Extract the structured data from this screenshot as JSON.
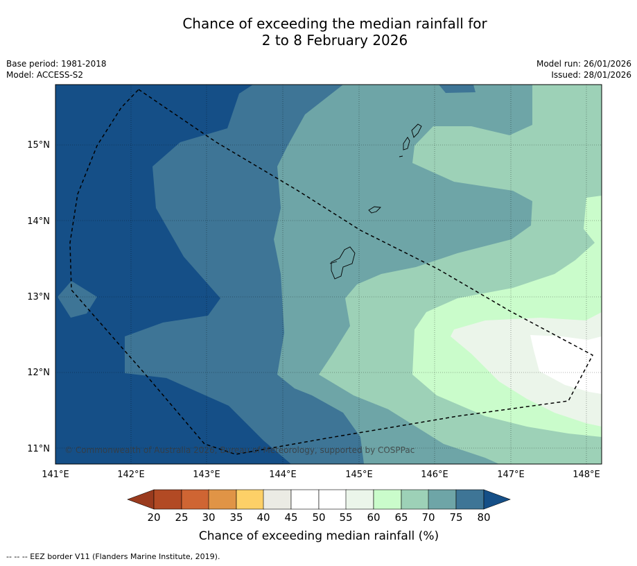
{
  "title": {
    "line1": "Chance of exceeding the median rainfall for",
    "line2": "2 to 8 February 2026"
  },
  "meta": {
    "base_period": "Base period: 1981-2018",
    "model": "Model: ACCESS-S2",
    "model_run": "Model run: 26/01/2026",
    "issued": "Issued: 28/01/2026"
  },
  "map": {
    "lon_labels": [
      "141°E",
      "142°E",
      "143°E",
      "144°E",
      "145°E",
      "146°E",
      "147°E",
      "148°E"
    ],
    "lat_labels": [
      "15°N",
      "14°N",
      "13°N",
      "12°N",
      "11°N"
    ],
    "copyright": "© Commonwealth of Australia 2026, Bureau of Meteorology, supported by COSPPac",
    "extent": {
      "lon_min": 141.0,
      "lon_max": 148.2,
      "lat_min": 10.8,
      "lat_max": 15.8
    }
  },
  "colorbar": {
    "ticks": [
      "20",
      "25",
      "30",
      "35",
      "40",
      "45",
      "50",
      "55",
      "60",
      "65",
      "70",
      "75",
      "80"
    ],
    "colors": {
      "below_20": "#9a3b1e",
      "20_25": "#b24a24",
      "25_30": "#cf6533",
      "30_35": "#e09446",
      "35_40": "#fdd067",
      "40_45": "#ebebe4",
      "45_50": "#ffffff",
      "50_55": "#ffffff",
      "55_60": "#ebf5ea",
      "60_65": "#cafccb",
      "65_70": "#9dd1b7",
      "70_75": "#6ea5a7",
      "75_80": "#3e7596",
      "above_80": "#154f87"
    },
    "title": "Chance of exceeding median rainfall (%)"
  },
  "footer": "--  --  -- EEZ border V11 (Flanders Marine Institute, 2019)."
}
